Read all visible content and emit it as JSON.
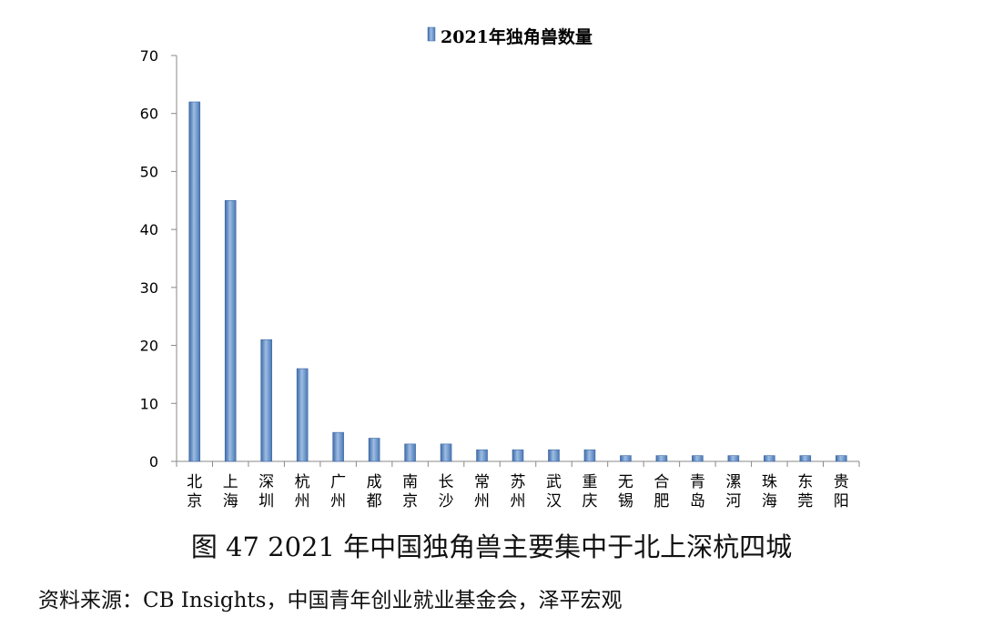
{
  "figure": {
    "caption": "图 47 2021 年中国独角兽主要集中于北上深杭四城",
    "source": "资料来源：CB Insights，中国青年创业就业基金会，泽平宏观"
  },
  "chart_data": {
    "type": "bar",
    "title": "",
    "xlabel": "",
    "ylabel": "",
    "legend": {
      "position": "top-center",
      "entries": [
        "2021年独角兽数量"
      ]
    },
    "categories": [
      "北京",
      "上海",
      "深圳",
      "杭州",
      "广州",
      "成都",
      "南京",
      "长沙",
      "常州",
      "苏州",
      "武汉",
      "重庆",
      "无锡",
      "合肥",
      "青岛",
      "漯河",
      "珠海",
      "东莞",
      "贵阳"
    ],
    "series": [
      {
        "name": "2021年独角兽数量",
        "values": [
          62,
          45,
          21,
          16,
          5,
          4,
          3,
          3,
          2,
          2,
          2,
          2,
          1,
          1,
          1,
          1,
          1,
          1,
          1
        ],
        "color": "#5f8fc6"
      }
    ],
    "ylim": [
      0,
      70
    ],
    "yticks": [
      0,
      10,
      20,
      30,
      40,
      50,
      60,
      70
    ],
    "grid": false
  }
}
